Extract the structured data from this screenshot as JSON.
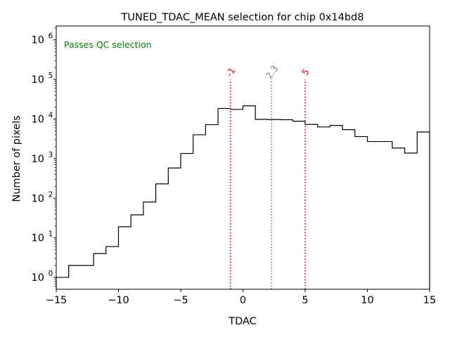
{
  "chart_data": {
    "type": "histogram",
    "title": "TUNED_TDAC_MEAN selection for chip 0x14bd8",
    "xlabel": "TDAC",
    "ylabel": "Number of pixels",
    "xlim": [
      -15,
      15
    ],
    "ylim_log10": [
      -0.3,
      6.35
    ],
    "yscale": "log",
    "x_ticks": [
      -15,
      -10,
      -5,
      0,
      5,
      10,
      15
    ],
    "x_tick_labels": [
      "−15",
      "−10",
      "−5",
      "0",
      "5",
      "10",
      "15"
    ],
    "y_ticks_exp": [
      0,
      1,
      2,
      3,
      4,
      5,
      6
    ],
    "y_tick_base": "10",
    "annotation": {
      "text": "Passes QC selection",
      "color": "#008000",
      "position": "top-left"
    },
    "bins": {
      "edges": [
        -15,
        -14,
        -13,
        -12,
        -11,
        -10,
        -9,
        -8,
        -7,
        -6,
        -5,
        -4,
        -3,
        -2,
        -1,
        0,
        1,
        2,
        3,
        4,
        5,
        6,
        7,
        8,
        9,
        10,
        11,
        12,
        13,
        14,
        15
      ],
      "counts": [
        1,
        2,
        2,
        4,
        6,
        19,
        38,
        80,
        230,
        580,
        1350,
        4000,
        7200,
        18500,
        17500,
        21500,
        9800,
        9700,
        9600,
        8800,
        7300,
        6300,
        6900,
        5400,
        3600,
        2700,
        2700,
        1850,
        1380,
        4700
      ]
    },
    "vlines": [
      {
        "x": -1,
        "label": "-1",
        "color": "#ff0000",
        "ymax": 100000
      },
      {
        "x": 2.3,
        "label": "2.3",
        "color": "#808080",
        "ymax": 100000
      },
      {
        "x": 5,
        "label": "5",
        "color": "#ff0000",
        "ymax": 100000
      }
    ],
    "line_color": "#000000"
  }
}
